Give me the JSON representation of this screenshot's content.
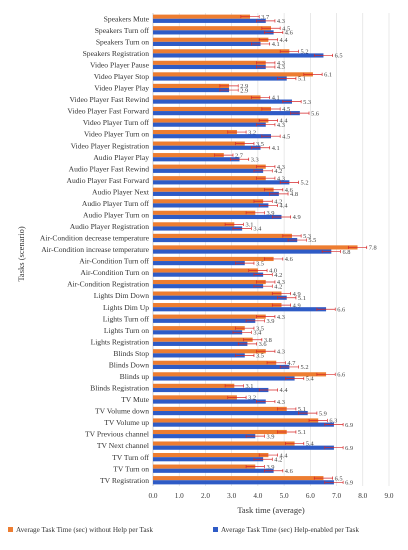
{
  "chart_data": {
    "type": "bar",
    "orientation": "horizontal",
    "title": "",
    "xlabel": "Task time (average)",
    "ylabel": "Tasks (scenario)",
    "xlim": [
      0,
      9
    ],
    "xticks": [
      "0.0",
      "1.0",
      "2.0",
      "3.0",
      "4.0",
      "5.0",
      "6.0",
      "7.0",
      "8.0",
      "9.0"
    ],
    "grid": true,
    "legend_position": "bottom",
    "categories": [
      "Speakers Mute",
      "Speakers Turn off",
      "Speakers Turn on",
      "Speakers Registration",
      "Video Player Pause",
      "Video Player Stop",
      "Video Player Play",
      "Video Player Fast Rewind",
      "Video Player Fast Forward",
      "Video Player Turn off",
      "Video Player Turn on",
      "Video Player Registration",
      "Audio Player Play",
      "Audio Player Fast Rewind",
      "Audio Player Fast Forward",
      "Audio Player Next",
      "Audio Player Turn off",
      "Audio Player Turn on",
      "Audio Player Registration",
      "Air-Condition decrease temperature",
      "Air-Condition increase temperature",
      "Air-Condition Turn off",
      "Air-Condition Turn on",
      "Air-Condition Registration",
      "Lights Dim Down",
      "Lights Dim Up",
      "Lights Turn off",
      "Lights Turn on",
      "Lights Registration",
      "Blinds Stop",
      "Blinds Down",
      "Blinds up",
      "Blinds Registration",
      "TV Mute",
      "TV Volume down",
      "TV Volume up",
      "TV Previous channel",
      "TV Next channel",
      "TV Turn off",
      "TV Turn on",
      "TV Registration"
    ],
    "series": [
      {
        "name": "Average Task Time (sec) without Help per Task",
        "color": "#ED7D31",
        "values": [
          3.7,
          4.5,
          4.4,
          5.2,
          4.3,
          6.1,
          2.9,
          4.1,
          4.5,
          4.4,
          3.2,
          3.5,
          2.7,
          4.3,
          4.3,
          4.6,
          4.2,
          3.9,
          3.1,
          5.3,
          7.8,
          4.6,
          4.0,
          4.3,
          4.9,
          4.9,
          4.3,
          3.5,
          3.8,
          4.3,
          4.7,
          6.6,
          3.1,
          3.2,
          5.1,
          6.3,
          5.1,
          5.4,
          4.4,
          3.9,
          6.5
        ]
      },
      {
        "name": "Average Task Time (sec) Help-enabled per Task",
        "color": "#2E5BC6",
        "values": [
          4.3,
          4.6,
          4.1,
          6.5,
          4.3,
          5.1,
          2.9,
          5.3,
          5.6,
          4.3,
          4.5,
          4.1,
          3.3,
          4.2,
          5.2,
          4.8,
          4.4,
          4.9,
          3.4,
          5.5,
          6.8,
          3.5,
          4.2,
          4.2,
          5.1,
          6.6,
          3.9,
          3.4,
          3.6,
          3.5,
          5.2,
          5.4,
          4.4,
          4.3,
          5.9,
          6.9,
          3.9,
          6.9,
          4.2,
          4.6,
          6.9
        ]
      }
    ]
  }
}
